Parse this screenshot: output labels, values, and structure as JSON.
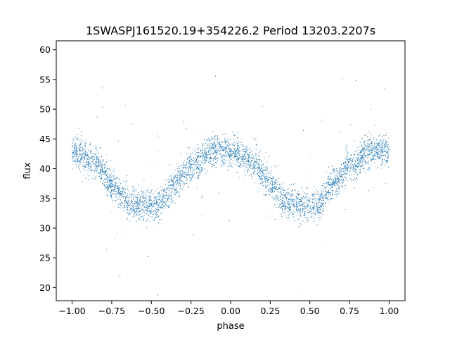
{
  "chart_data": {
    "type": "scatter",
    "title": "1SWASPJ161520.19+354226.2 Period 13203.2207s",
    "xlabel": "phase",
    "ylabel": "flux",
    "xlim": [
      -1.1,
      1.1
    ],
    "ylim": [
      17.8,
      61.5
    ],
    "xticks": [
      -1.0,
      -0.75,
      -0.5,
      -0.25,
      0.0,
      0.25,
      0.5,
      0.75,
      1.0
    ],
    "xtick_labels": [
      "−1.00",
      "−0.75",
      "−0.50",
      "−0.25",
      "0.00",
      "0.25",
      "0.50",
      "0.75",
      "1.00"
    ],
    "yticks": [
      20,
      25,
      30,
      35,
      40,
      45,
      50,
      55,
      60
    ],
    "ytick_labels": [
      "20",
      "25",
      "30",
      "35",
      "40",
      "45",
      "50",
      "55",
      "60"
    ],
    "grid": false,
    "marker_color": "#1f77b4",
    "light_curve": {
      "description_points": [
        {
          "phase": -1.0,
          "flux": 43.0
        },
        {
          "phase": -0.85,
          "flux": 41.0
        },
        {
          "phase": -0.75,
          "flux": 37.5
        },
        {
          "phase": -0.65,
          "flux": 34.5
        },
        {
          "phase": -0.55,
          "flux": 33.8
        },
        {
          "phase": -0.45,
          "flux": 34.0
        },
        {
          "phase": -0.35,
          "flux": 37.5
        },
        {
          "phase": -0.25,
          "flux": 40.5
        },
        {
          "phase": -0.1,
          "flux": 43.0
        },
        {
          "phase": 0.0,
          "flux": 43.0
        },
        {
          "phase": 0.15,
          "flux": 41.0
        },
        {
          "phase": 0.25,
          "flux": 37.5
        },
        {
          "phase": 0.35,
          "flux": 34.5
        },
        {
          "phase": 0.45,
          "flux": 33.8
        },
        {
          "phase": 0.55,
          "flux": 34.0
        },
        {
          "phase": 0.65,
          "flux": 37.5
        },
        {
          "phase": 0.75,
          "flux": 40.5
        },
        {
          "phase": 0.9,
          "flux": 43.0
        },
        {
          "phase": 1.0,
          "flux": 43.0
        }
      ],
      "point_count": 9000,
      "scatter_sigma": 1.3,
      "outlier_fraction": 0.012
    }
  }
}
